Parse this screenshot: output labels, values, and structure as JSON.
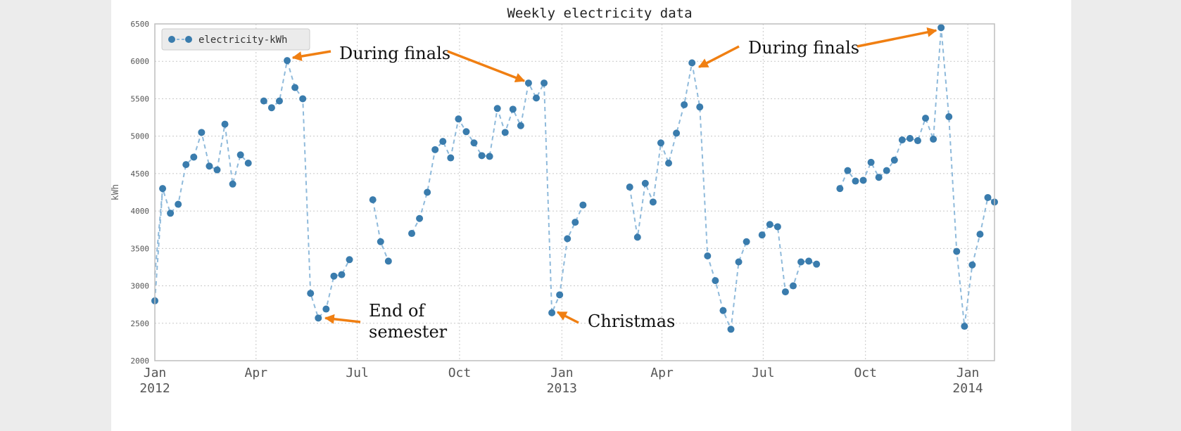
{
  "chart_data": {
    "type": "line",
    "title": "Weekly electricity data",
    "ylabel": "kWh",
    "xlabel": "",
    "ylim": [
      2000,
      6500
    ],
    "xlim": [
      "2012-01-01",
      "2014-01-25"
    ],
    "grid": true,
    "legend_placement": "top-left",
    "y_ticks": [
      2000,
      2500,
      3000,
      3500,
      4000,
      4500,
      5000,
      5500,
      6000,
      6500
    ],
    "x_ticks": [
      {
        "date": "2012-01-01",
        "label": "Jan",
        "year": "2012"
      },
      {
        "date": "2012-04-01",
        "label": "Apr",
        "year": ""
      },
      {
        "date": "2012-07-01",
        "label": "Jul",
        "year": ""
      },
      {
        "date": "2012-10-01",
        "label": "Oct",
        "year": ""
      },
      {
        "date": "2013-01-01",
        "label": "Jan",
        "year": "2013"
      },
      {
        "date": "2013-04-01",
        "label": "Apr",
        "year": ""
      },
      {
        "date": "2013-07-01",
        "label": "Jul",
        "year": ""
      },
      {
        "date": "2013-10-01",
        "label": "Oct",
        "year": ""
      },
      {
        "date": "2014-01-01",
        "label": "Jan",
        "year": "2014"
      }
    ],
    "series": [
      {
        "name": "electricity-kWh",
        "color": "#3a7cad",
        "line_style": "dashed",
        "marker": "circle",
        "points": [
          [
            "2012-01-01",
            2800
          ],
          [
            "2012-01-08",
            4300
          ],
          [
            "2012-01-15",
            3970
          ],
          [
            "2012-01-22",
            4090
          ],
          [
            "2012-01-29",
            4620
          ],
          [
            "2012-02-05",
            4720
          ],
          [
            "2012-02-12",
            5050
          ],
          [
            "2012-02-19",
            4600
          ],
          [
            "2012-02-26",
            4550
          ],
          [
            "2012-03-04",
            5160
          ],
          [
            "2012-03-11",
            4360
          ],
          [
            "2012-03-18",
            4750
          ],
          [
            "2012-03-25",
            4640
          ],
          [
            "2012-04-08",
            5470
          ],
          [
            "2012-04-15",
            5380
          ],
          [
            "2012-04-22",
            5470
          ],
          [
            "2012-04-29",
            6010
          ],
          [
            "2012-05-06",
            5650
          ],
          [
            "2012-05-13",
            5500
          ],
          [
            "2012-05-20",
            2900
          ],
          [
            "2012-05-27",
            2570
          ],
          [
            "2012-06-03",
            2690
          ],
          [
            "2012-06-10",
            3130
          ],
          [
            "2012-06-17",
            3150
          ],
          [
            "2012-06-24",
            3350
          ],
          [
            "2012-07-15",
            4150
          ],
          [
            "2012-07-22",
            3590
          ],
          [
            "2012-07-29",
            3330
          ],
          [
            "2012-08-19",
            3700
          ],
          [
            "2012-08-26",
            3900
          ],
          [
            "2012-09-02",
            4250
          ],
          [
            "2012-09-09",
            4820
          ],
          [
            "2012-09-16",
            4930
          ],
          [
            "2012-09-23",
            4710
          ],
          [
            "2012-09-30",
            5230
          ],
          [
            "2012-10-07",
            5060
          ],
          [
            "2012-10-14",
            4910
          ],
          [
            "2012-10-21",
            4740
          ],
          [
            "2012-10-28",
            4730
          ],
          [
            "2012-11-04",
            5370
          ],
          [
            "2012-11-11",
            5050
          ],
          [
            "2012-11-18",
            5360
          ],
          [
            "2012-11-25",
            5140
          ],
          [
            "2012-12-02",
            5710
          ],
          [
            "2012-12-09",
            5510
          ],
          [
            "2012-12-16",
            5710
          ],
          [
            "2012-12-23",
            2640
          ],
          [
            "2012-12-30",
            2880
          ],
          [
            "2013-01-06",
            3630
          ],
          [
            "2013-01-13",
            3850
          ],
          [
            "2013-01-20",
            4080
          ],
          [
            "2013-03-03",
            4320
          ],
          [
            "2013-03-10",
            3650
          ],
          [
            "2013-03-17",
            4370
          ],
          [
            "2013-03-24",
            4120
          ],
          [
            "2013-03-31",
            4910
          ],
          [
            "2013-04-07",
            4640
          ],
          [
            "2013-04-14",
            5040
          ],
          [
            "2013-04-21",
            5420
          ],
          [
            "2013-04-28",
            5980
          ],
          [
            "2013-05-05",
            5390
          ],
          [
            "2013-05-12",
            3400
          ],
          [
            "2013-05-19",
            3070
          ],
          [
            "2013-05-26",
            2670
          ],
          [
            "2013-06-02",
            2420
          ],
          [
            "2013-06-09",
            3320
          ],
          [
            "2013-06-16",
            3590
          ],
          [
            "2013-06-30",
            3680
          ],
          [
            "2013-07-07",
            3820
          ],
          [
            "2013-07-14",
            3790
          ],
          [
            "2013-07-21",
            2920
          ],
          [
            "2013-07-28",
            3000
          ],
          [
            "2013-08-04",
            3320
          ],
          [
            "2013-08-11",
            3330
          ],
          [
            "2013-08-18",
            3290
          ],
          [
            "2013-09-08",
            4300
          ],
          [
            "2013-09-15",
            4540
          ],
          [
            "2013-09-22",
            4400
          ],
          [
            "2013-09-29",
            4410
          ],
          [
            "2013-10-06",
            4650
          ],
          [
            "2013-10-13",
            4450
          ],
          [
            "2013-10-20",
            4540
          ],
          [
            "2013-10-27",
            4680
          ],
          [
            "2013-11-03",
            4950
          ],
          [
            "2013-11-10",
            4970
          ],
          [
            "2013-11-17",
            4940
          ],
          [
            "2013-11-24",
            5240
          ],
          [
            "2013-12-01",
            4960
          ],
          [
            "2013-12-08",
            6450
          ],
          [
            "2013-12-15",
            5260
          ],
          [
            "2013-12-22",
            3460
          ],
          [
            "2013-12-29",
            2460
          ],
          [
            "2014-01-05",
            3280
          ],
          [
            "2014-01-12",
            3690
          ],
          [
            "2014-01-19",
            4180
          ],
          [
            "2014-01-25",
            4120
          ]
        ]
      }
    ],
    "annotations": [
      {
        "text_lines": [
          "During finals"
        ],
        "arrows_to": [
          [
            "2012-04-29",
            6010
          ],
          [
            "2012-12-02",
            5710
          ]
        ]
      },
      {
        "text_lines": [
          "End of",
          "semester"
        ],
        "arrows_to": [
          [
            "2012-05-27",
            2570
          ]
        ]
      },
      {
        "text_lines": [
          "Christmas"
        ],
        "arrows_to": [
          [
            "2012-12-23",
            2640
          ]
        ]
      },
      {
        "text_lines": [
          "During finals"
        ],
        "arrows_to": [
          [
            "2013-04-28",
            5980
          ],
          [
            "2013-12-08",
            6450
          ]
        ]
      }
    ],
    "annotation_color": "#f07f12"
  }
}
